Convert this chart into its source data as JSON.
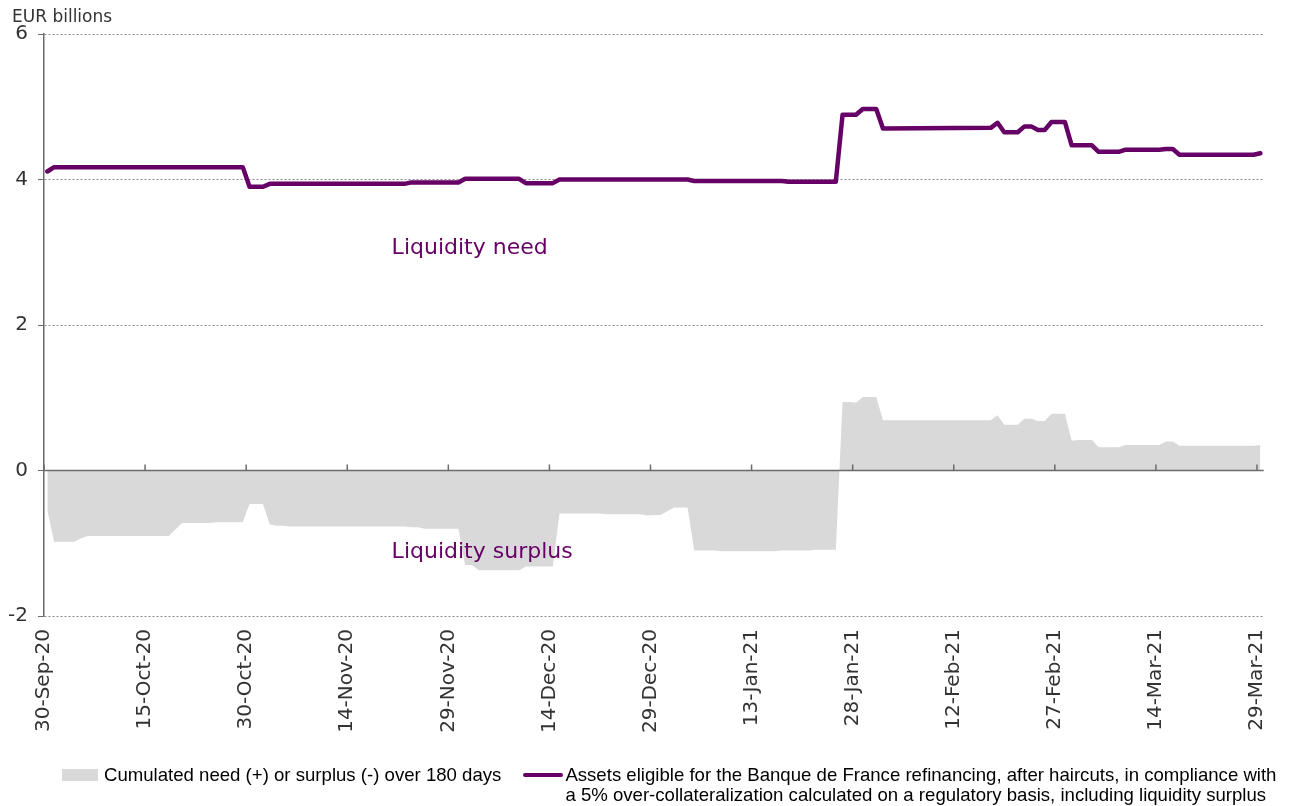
{
  "chart_data": {
    "type": "area",
    "ylabel": "EUR billions",
    "series": [
      {
        "name": "Cumulated need (+) or surplus (-) over 180 days",
        "color": "#d9d9d9",
        "x": [
          "2020-09-30T12:00",
          "2020-10-01T12:00",
          "2020-10-04T12:00",
          "2020-10-05T12:00",
          "2020-10-06T12:00",
          "2020-10-18T12:00",
          "2020-10-19T12:00",
          "2020-10-20T12:00",
          "2020-10-24T12:00",
          "2020-10-25T12:00",
          "2020-10-29T12:00",
          "2020-10-30T12:00",
          "2020-11-01T12:00",
          "2020-11-02T12:00",
          "2020-11-03T12:00",
          "2020-11-04T12:00",
          "2020-11-05T12:00",
          "2020-11-22T12:00",
          "2020-11-23T12:00",
          "2020-11-24T12:00",
          "2020-11-25T12:00",
          "2020-11-30T12:00",
          "2020-12-01T12:00",
          "2020-12-02T12:00",
          "2020-12-03T12:00",
          "2020-12-09T12:00",
          "2020-12-10T12:00",
          "2020-12-14T12:00",
          "2020-12-15T12:00",
          "2020-12-21T12:00",
          "2020-12-22T12:00",
          "2020-12-27T12:00",
          "2020-12-28T12:00",
          "2020-12-29T12:00",
          "2020-12-30T12:00",
          "2020-12-31T12:00",
          "2021-01-01T12:00",
          "2021-01-03T12:00",
          "2021-01-04T12:00",
          "2021-01-07T12:00",
          "2021-01-08T12:00",
          "2021-01-16T12:00",
          "2021-01-17T12:00",
          "2021-01-21T12:00",
          "2021-01-22T12:00",
          "2021-01-25T12:00",
          "2021-01-26T12:00",
          "2021-01-27T12:00",
          "2021-01-28T12:00",
          "2021-01-29T12:00",
          "2021-01-31T12:00",
          "2021-02-01T12:00",
          "2021-02-17T12:00",
          "2021-02-18T12:00",
          "2021-02-19T12:00",
          "2021-02-21T12:00",
          "2021-02-22T12:00",
          "2021-02-23T12:00",
          "2021-02-24T12:00",
          "2021-02-25T12:00",
          "2021-02-26T12:00",
          "2021-02-28T12:00",
          "2021-03-01T12:00",
          "2021-03-02T12:00",
          "2021-03-04T12:00",
          "2021-03-05T12:00",
          "2021-03-08T12:00",
          "2021-03-09T12:00",
          "2021-03-14T12:00",
          "2021-03-15T12:00",
          "2021-03-16T12:00",
          "2021-03-17T12:00",
          "2021-03-28T12:00",
          "2021-03-29T12:00"
        ],
        "values": [
          -0.55,
          -0.98,
          -0.98,
          -0.93,
          -0.9,
          -0.9,
          -0.81,
          -0.72,
          -0.72,
          -0.71,
          -0.71,
          -0.46,
          -0.46,
          -0.74,
          -0.76,
          -0.76,
          -0.77,
          -0.77,
          -0.78,
          -0.78,
          -0.8,
          -0.8,
          -1.3,
          -1.3,
          -1.37,
          -1.37,
          -1.32,
          -1.32,
          -0.59,
          -0.59,
          -0.6,
          -0.6,
          -0.62,
          -0.61,
          -0.61,
          -0.56,
          -0.51,
          -0.51,
          -1.1,
          -1.1,
          -1.11,
          -1.11,
          -1.1,
          -1.1,
          -1.09,
          -1.09,
          0.94,
          0.94,
          0.93,
          1.01,
          1.01,
          0.69,
          0.69,
          0.76,
          0.63,
          0.63,
          0.71,
          0.71,
          0.68,
          0.68,
          0.78,
          0.78,
          0.41,
          0.42,
          0.42,
          0.32,
          0.32,
          0.35,
          0.35,
          0.4,
          0.4,
          0.34,
          0.34,
          0.35
        ]
      },
      {
        "name": "Assets eligible for the Banque de France refinancing, after haircuts, in compliance with a 5% over-collateralization calculated on a regulatory basis, including liquidity surplus",
        "type": "line",
        "color": "#660066",
        "x": [
          "2020-09-30T12:00",
          "2020-10-01T12:00",
          "2020-10-29T12:00",
          "2020-10-30T12:00",
          "2020-11-01T12:00",
          "2020-11-02T12:00",
          "2020-11-22T12:00",
          "2020-11-23T12:00",
          "2020-11-30T12:00",
          "2020-12-01T12:00",
          "2020-12-09T12:00",
          "2020-12-10T12:00",
          "2020-12-14T12:00",
          "2020-12-15T12:00",
          "2021-01-03T12:00",
          "2021-01-04T12:00",
          "2021-01-17T12:00",
          "2021-01-18T12:00",
          "2021-01-25T12:00",
          "2021-01-26T12:00",
          "2021-01-28T12:00",
          "2021-01-29T12:00",
          "2021-01-31T12:00",
          "2021-02-01T12:00",
          "2021-02-17T12:00",
          "2021-02-18T12:00",
          "2021-02-19T12:00",
          "2021-02-21T12:00",
          "2021-02-22T12:00",
          "2021-02-23T12:00",
          "2021-02-24T12:00",
          "2021-02-25T12:00",
          "2021-02-26T12:00",
          "2021-02-28T12:00",
          "2021-03-01T12:00",
          "2021-03-04T12:00",
          "2021-03-05T12:00",
          "2021-03-08T12:00",
          "2021-03-09T12:00",
          "2021-03-14T12:00",
          "2021-03-15T12:00",
          "2021-03-16T12:00",
          "2021-03-17T12:00",
          "2021-03-28T12:00",
          "2021-03-29T12:00"
        ],
        "values": [
          4.11,
          4.17,
          4.17,
          3.9,
          3.9,
          3.94,
          3.94,
          3.96,
          3.96,
          4.01,
          4.01,
          3.95,
          3.95,
          4.0,
          4.0,
          3.98,
          3.98,
          3.97,
          3.97,
          4.89,
          4.89,
          4.97,
          4.97,
          4.7,
          4.71,
          4.78,
          4.65,
          4.65,
          4.73,
          4.73,
          4.68,
          4.68,
          4.79,
          4.79,
          4.47,
          4.47,
          4.38,
          4.38,
          4.41,
          4.41,
          4.42,
          4.42,
          4.34,
          4.34,
          4.36
        ]
      }
    ],
    "xlim": [
      "2020-09-30",
      "2021-03-30"
    ],
    "xticks": [
      {
        "value": "2020-09-30",
        "label": "30-Sep-20"
      },
      {
        "value": "2020-10-15",
        "label": "15-Oct-20"
      },
      {
        "value": "2020-10-30",
        "label": "30-Oct-20"
      },
      {
        "value": "2020-11-14",
        "label": "14-Nov-20"
      },
      {
        "value": "2020-11-29",
        "label": "29-Nov-20"
      },
      {
        "value": "2020-12-14",
        "label": "14-Dec-20"
      },
      {
        "value": "2020-12-29",
        "label": "29-Dec-20"
      },
      {
        "value": "2021-01-13",
        "label": "13-Jan-21"
      },
      {
        "value": "2021-01-28",
        "label": "28-Jan-21"
      },
      {
        "value": "2021-02-12",
        "label": "12-Feb-21"
      },
      {
        "value": "2021-02-27",
        "label": "27-Feb-21"
      },
      {
        "value": "2021-03-14",
        "label": "14-Mar-21"
      },
      {
        "value": "2021-03-29",
        "label": "29-Mar-21"
      }
    ],
    "ylim": [
      -2,
      6
    ],
    "yticks": [
      -2,
      0,
      2,
      4,
      6
    ],
    "grid": "y",
    "legend": "bottom",
    "annotations": [
      "Liquidity need",
      "Liquidity surplus"
    ]
  }
}
